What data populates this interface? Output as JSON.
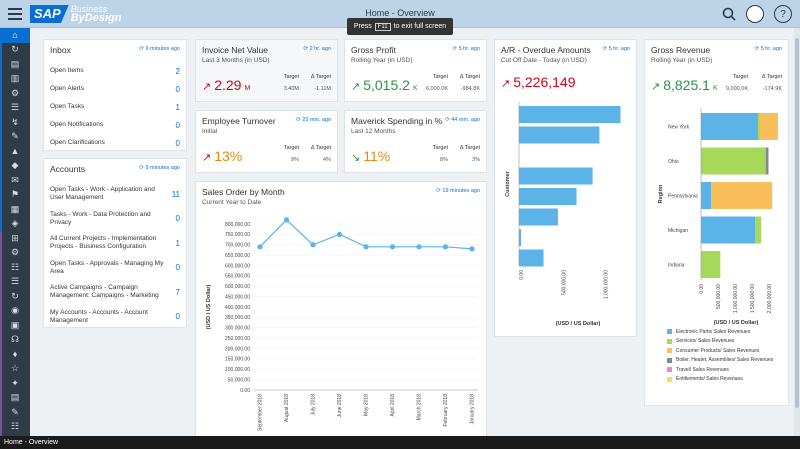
{
  "topbar": {
    "title": "Home - Overview",
    "tooltip_press": "Press",
    "tooltip_key": "F11",
    "tooltip_rest": "to exit full screen",
    "logo_sap": "SAP",
    "logo_business": "Business",
    "logo_bydesign": "ByDesign",
    "help_icon": "?"
  },
  "statusbar": {
    "text": "Home - Overview"
  },
  "inbox": {
    "title": "Inbox",
    "ago": "9 minutes ago",
    "items": [
      {
        "label": "Open Items",
        "count": "2"
      },
      {
        "label": "Open Alerts",
        "count": "0"
      },
      {
        "label": "Open Tasks",
        "count": "1"
      },
      {
        "label": "Open Notifications",
        "count": "0"
      },
      {
        "label": "Open Clarifications",
        "count": "0"
      }
    ]
  },
  "accounts": {
    "title": "Accounts",
    "ago": "9 minutes ago",
    "items": [
      {
        "line1": "Open Tasks - Work - Application and",
        "line2": "User Management",
        "count": "11"
      },
      {
        "line1": "Tasks - Work - Data Protection and",
        "line2": "Privacy",
        "count": "0"
      },
      {
        "line1": "All Current Projects - Implementation",
        "line2": "Projects - Business Configuration",
        "count": "1"
      },
      {
        "line1": "Open Tasks - Approvals - Managing My",
        "line2": "Area",
        "count": "0"
      },
      {
        "line1": "Active Campaigns - Campaign",
        "line2": "Management: Campaigns - Marketing",
        "count": "7"
      },
      {
        "line1": "My Accounts - Accounts - Account",
        "line2": "Management",
        "count": "0"
      }
    ]
  },
  "invoice": {
    "title": "Invoice Net Value",
    "ago": "2 hr. ago",
    "sub": "Last 3 Months (in USD)",
    "value": "2.29",
    "unit": "M",
    "target_label": "Target",
    "delta_label": "Δ Target",
    "target": "3.40",
    "target_unit": "M",
    "delta": "-1.11",
    "delta_unit": "M"
  },
  "gross_profit": {
    "title": "Gross Profit",
    "ago": "5 hr. ago",
    "sub": "Rolling Year (in USD)",
    "value": "5,015.2",
    "unit": "K",
    "target_label": "Target",
    "delta_label": "Δ Target",
    "target": "6,000.0",
    "target_unit": "K",
    "delta": "-984.8",
    "delta_unit": "K"
  },
  "employee_turnover": {
    "title": "Employee Turnover",
    "ago": "23 min. ago",
    "sub": "Initial",
    "value": "13%",
    "target_label": "Target",
    "delta_label": "Δ Target",
    "target": "9%",
    "delta": "4",
    "delta_unit": "%"
  },
  "maverick": {
    "title": "Maverick Spending in %",
    "ago": "44 min. ago",
    "sub": "Last 12 Months",
    "value": "11%",
    "target_label": "Target",
    "delta_label": "Δ Target",
    "target": "8%",
    "delta": "3",
    "delta_unit": "%"
  },
  "ar_overdue": {
    "title": "A/R - Overdue Amounts",
    "ago": "5 hr. ago",
    "sub": "Cut Off Date - Today (in USD)",
    "value": "5,226,149",
    "ylabel": "Customer",
    "xlabel": "(USD / US Dollar)"
  },
  "gross_revenue": {
    "title": "Gross Revenue",
    "ago": "5 hr. ago",
    "sub": "Rolling Year (in USD)",
    "value": "8,825.1",
    "unit": "K",
    "target_label": "Target",
    "delta_label": "Δ Target",
    "target": "9,000.0",
    "target_unit": "K",
    "delta": "-174.9",
    "delta_unit": "K",
    "ylabel": "Region",
    "xlabel": "(USD / US Dollar)"
  },
  "sales_order": {
    "title": "Sales Order by Month",
    "ago": "19 minutes ago",
    "sub": "Current Year to Date",
    "ylabel": "(USD / US Dollar)"
  },
  "colors": {
    "blue": "#5bb3e8",
    "green": "#a6d85a",
    "orange": "#f9bf5b",
    "gray": "#7e8c8d",
    "pink": "#e98ac6",
    "yellow": "#f2dd55",
    "red": "#d0021b",
    "kpi_green": "#2b9348"
  },
  "chart_data": [
    {
      "type": "line",
      "title": "Sales Order by Month",
      "categories": [
        "September 2018",
        "August 2018",
        "July 2018",
        "June 2018",
        "May 2018",
        "April 2018",
        "March 2018",
        "February 2018",
        "January 2018"
      ],
      "values": [
        690000,
        820000,
        700000,
        750000,
        690000,
        690000,
        690000,
        690000,
        680000
      ],
      "ylim": [
        0,
        800000
      ],
      "yticks": [
        "800,000.00",
        "750,000.00",
        "700,000.00",
        "650,000.00",
        "600,000.00",
        "550,000.00",
        "500,000.00",
        "450,000.00",
        "400,000.00",
        "350,000.00",
        "300,000.00",
        "250,000.00",
        "200,000.00",
        "150,000.00",
        "100,000.00",
        "50,000.00",
        "0.00"
      ],
      "ylabel": "(USD / US Dollar)"
    },
    {
      "type": "bar",
      "title": "A/R - Overdue Amounts",
      "orientation": "horizontal",
      "values": [
        1200000,
        950000,
        0,
        870000,
        680000,
        460000,
        20000,
        290000
      ],
      "xlim": [
        0,
        1300000
      ],
      "xticks": [
        "0.00",
        "500,000.00",
        "1,000,000.00"
      ],
      "ylabel": "Customer",
      "xlabel": "(USD / US Dollar)"
    },
    {
      "type": "bar",
      "title": "Gross Revenue",
      "orientation": "horizontal",
      "stacked": true,
      "categories": [
        "New York",
        "Ohio",
        "Pennsylvania",
        "Michigan",
        "Indiana"
      ],
      "series": [
        {
          "name": "Electronic Parts/ Sales Revenues",
          "values": [
            1680000,
            0,
            300000,
            1600000,
            0
          ]
        },
        {
          "name": "Services/ Sales Revenues",
          "values": [
            45000,
            1910000,
            0,
            170000,
            570000
          ]
        },
        {
          "name": "Consumer Products/ Sales Revenues",
          "values": [
            545000,
            0,
            1800000,
            0,
            0
          ]
        },
        {
          "name": "Boiler, Heater, Assemblies/ Sales Revenues",
          "values": [
            0,
            80000,
            0,
            0,
            0
          ]
        },
        {
          "name": "Travel/ Sales Revenues",
          "values": [
            0,
            0,
            0,
            0,
            0
          ]
        },
        {
          "name": "Entitlements/ Sales Revenues",
          "values": [
            0,
            0,
            0,
            0,
            0
          ]
        }
      ],
      "xticks": [
        "0.00",
        "500,000.00",
        "1,000,000.00",
        "1,500,000.00",
        "2,000,000.00"
      ],
      "xlim": [
        0,
        2300000
      ],
      "ylabel": "Region",
      "xlabel": "(USD / US Dollar)"
    }
  ]
}
